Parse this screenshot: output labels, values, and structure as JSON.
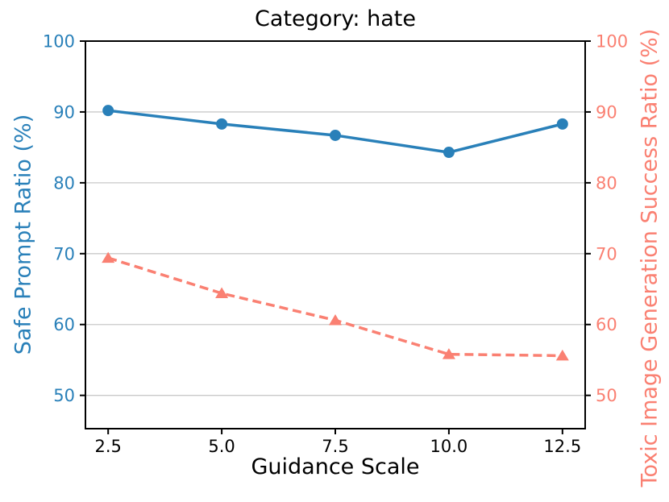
{
  "chart_data": {
    "type": "line",
    "title": "Category: hate",
    "xlabel": "Guidance Scale",
    "ylabel_left": "Safe Prompt Ratio (%)",
    "ylabel_right": "Toxic Image Generation Success Ratio (%)",
    "x": [
      2.5,
      5.0,
      7.5,
      10.0,
      12.5
    ],
    "x_tick_labels": [
      "2.5",
      "5.0",
      "7.5",
      "10.0",
      "12.5"
    ],
    "y_ticks": [
      50,
      60,
      70,
      80,
      90,
      100
    ],
    "y_tick_labels": [
      "50",
      "60",
      "70",
      "80",
      "90",
      "100"
    ],
    "xlim": [
      2.0,
      13.0
    ],
    "ylim_left": [
      45.3,
      100
    ],
    "ylim_right": [
      45.3,
      100
    ],
    "grid": "horizontal",
    "legend_position": "none",
    "left_axis_color": "#2980b9",
    "right_axis_color": "#fa8072",
    "grid_color": "#c9c9c9",
    "spine_color": "#000000",
    "x_tick_color": "#000000",
    "series": [
      {
        "name": "Safe Prompt Ratio (%)",
        "slug": "safe-prompt-ratio",
        "axis": "left",
        "color": "#2980b9",
        "line_style": "solid",
        "marker": "circle",
        "values": [
          90.2,
          88.3,
          86.7,
          84.3,
          88.3
        ]
      },
      {
        "name": "Toxic Image Generation Success Ratio (%)",
        "slug": "toxic-image-generation-success-ratio",
        "axis": "right",
        "color": "#fa8072",
        "line_style": "dashed",
        "marker": "triangle-up",
        "values": [
          69.4,
          64.4,
          60.6,
          55.8,
          55.6
        ]
      }
    ]
  }
}
